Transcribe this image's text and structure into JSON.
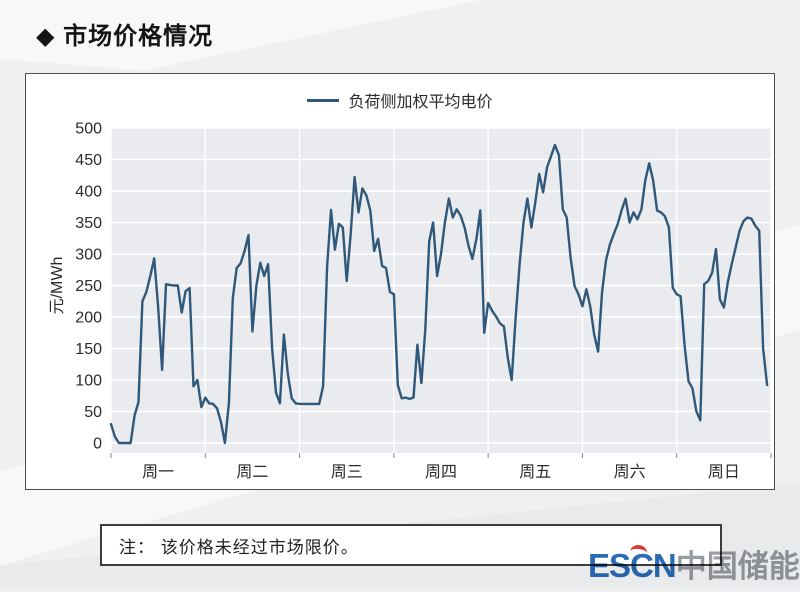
{
  "slide": {
    "title": "◆ 市场价格情况"
  },
  "note": {
    "text": "注： 该价格未经过市场限价。"
  },
  "watermark": {
    "escn_es": "ES",
    "escn_c": "C",
    "escn_n": "N",
    "site_name": "中国储能网"
  },
  "colors": {
    "page_bg": "#eef0f1",
    "card_bg": "#ffffff",
    "card_border": "#4d4d4d",
    "plot_panel": "#e9ebee",
    "gridline": "#ffffff",
    "series_line": "#30587a",
    "axis_text": "#2b2b2b",
    "note_border": "#3c3c3c",
    "logo_blue": "#2a6cb8",
    "logo_red": "#d43b33",
    "logo_gray": "#9a9da2"
  },
  "chart_data": {
    "type": "line",
    "title": "",
    "legend": "负荷侧加权平均电价",
    "legend_position": "top-center",
    "xlabel": "",
    "ylabel": "元/MWh",
    "ylim": [
      0,
      500
    ],
    "yticks": [
      0,
      50,
      100,
      150,
      200,
      250,
      300,
      350,
      400,
      450,
      500
    ],
    "categories": [
      "周一",
      "周二",
      "周三",
      "周四",
      "周五",
      "周六",
      "周日"
    ],
    "points_per_day": 24,
    "grid": "white horizontal and vertical gridlines on light-gray panel",
    "x_unit": "hour of day, 24 points per weekday",
    "y_unit": "元/MWh",
    "series": [
      {
        "name": "负荷侧加权平均电价",
        "color": "#30587a",
        "values": [
          30,
          10,
          0,
          0,
          0,
          0,
          44,
          65,
          225,
          240,
          265,
          293,
          217,
          116,
          252,
          251,
          250,
          250,
          207,
          241,
          246,
          90,
          100,
          57,
          72,
          63,
          62,
          55,
          33,
          0,
          63,
          230,
          278,
          285,
          305,
          330,
          177,
          250,
          286,
          265,
          284,
          150,
          80,
          63,
          172,
          110,
          71,
          63,
          62,
          62,
          62,
          62,
          62,
          62,
          90,
          280,
          370,
          307,
          348,
          342,
          257,
          330,
          422,
          366,
          404,
          393,
          369,
          305,
          324,
          281,
          278,
          240,
          236,
          92,
          71,
          72,
          70,
          72,
          156,
          95,
          180,
          320,
          350,
          265,
          300,
          350,
          388,
          358,
          371,
          361,
          342,
          313,
          292,
          324,
          369,
          175,
          222,
          210,
          201,
          190,
          185,
          135,
          100,
          198,
          284,
          350,
          388,
          342,
          382,
          427,
          398,
          438,
          455,
          473,
          457,
          371,
          358,
          294,
          249,
          236,
          217,
          244,
          216,
          172,
          145,
          240,
          290,
          315,
          332,
          348,
          370,
          388,
          350,
          366,
          355,
          371,
          417,
          444,
          417,
          369,
          366,
          360,
          342,
          246,
          236,
          233,
          155,
          98,
          87,
          50,
          36,
          252,
          257,
          270,
          308,
          228,
          215,
          255,
          284,
          310,
          337,
          352,
          358,
          356,
          345,
          337,
          150,
          92
        ]
      }
    ]
  }
}
